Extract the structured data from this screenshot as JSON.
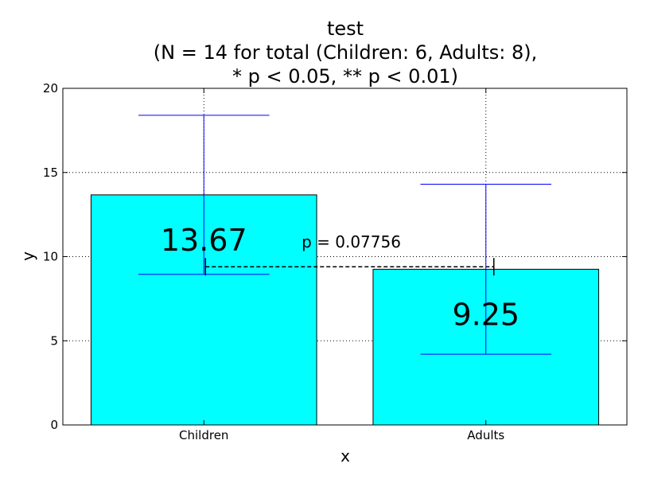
{
  "chart_data": {
    "type": "bar",
    "title_lines": [
      "test",
      "(N = 14 for total (Children: 6, Adults: 8),",
      "* p < 0.05, ** p < 0.01)"
    ],
    "xlabel": "x",
    "ylabel": "y",
    "categories": [
      "Children",
      "Adults"
    ],
    "values": [
      13.67,
      9.25
    ],
    "value_labels": [
      "13.67",
      "9.25"
    ],
    "error_low": [
      8.95,
      4.2
    ],
    "error_high": [
      18.4,
      14.3
    ],
    "ylim": [
      0,
      20
    ],
    "yticks": [
      0,
      5,
      10,
      15,
      20
    ],
    "ytick_labels": [
      "0",
      "5",
      "10",
      "15",
      "20"
    ],
    "grid": true,
    "bar_color": "#00ffff",
    "error_color": "#0000ff",
    "significance": {
      "label": "p = 0.07756",
      "y": 9.4,
      "between": [
        "Children",
        "Adults"
      ]
    }
  }
}
